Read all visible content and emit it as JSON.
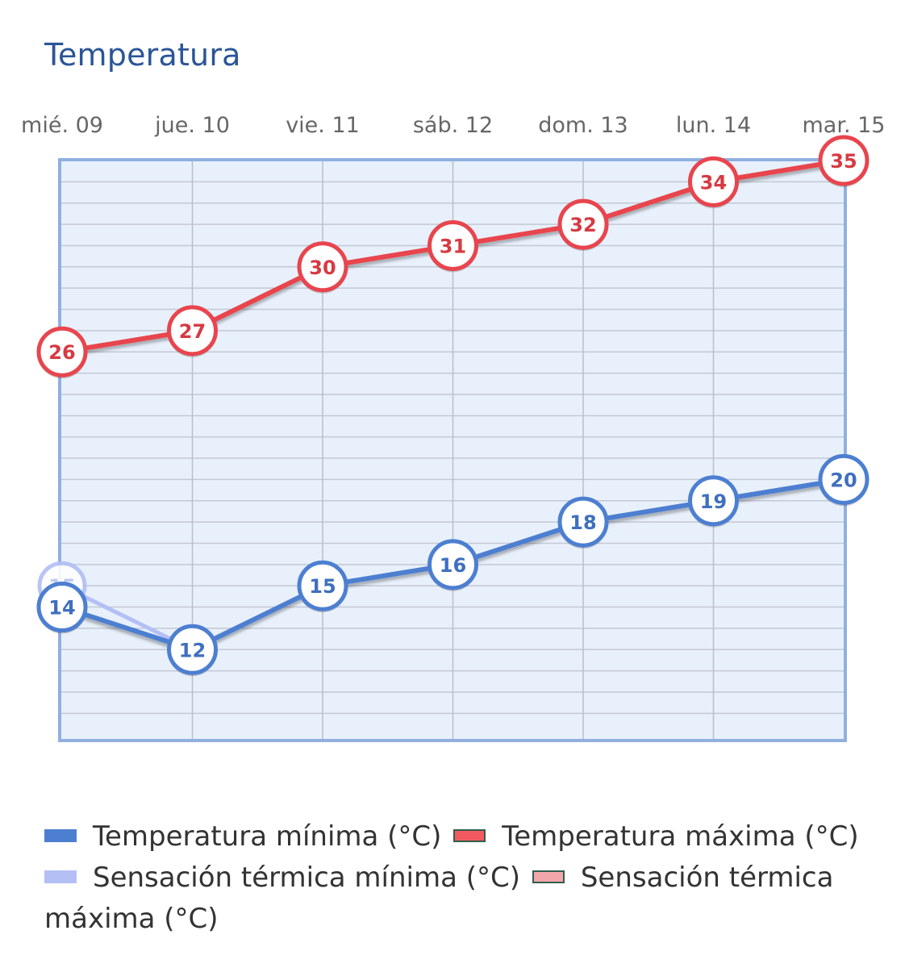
{
  "title": "Temperatura",
  "chart_data": {
    "type": "line",
    "title": "Temperatura",
    "categories": [
      "mié. 09",
      "jue. 10",
      "vie. 11",
      "sáb. 12",
      "dom. 13",
      "lun. 14",
      "mar. 15"
    ],
    "ylim": [
      10,
      35
    ],
    "grid": true,
    "legend_position": "bottom",
    "series": [
      {
        "key": "tmax_feel",
        "name": "Sensación térmica máxima (°C)",
        "color": "#f2a7ab",
        "values": [
          26,
          27,
          30,
          31,
          32,
          34,
          35
        ]
      },
      {
        "key": "tmin_feel",
        "name": "Sensación térmica mínima (°C)",
        "color": "#b3bff5",
        "values": [
          15,
          12,
          15,
          16,
          18,
          19,
          20
        ]
      },
      {
        "key": "tmax",
        "name": "Temperatura máxima (°C)",
        "color": "#e8454e",
        "values": [
          26,
          27,
          30,
          31,
          32,
          34,
          35
        ]
      },
      {
        "key": "tmin",
        "name": "Temperatura mínima (°C)",
        "color": "#4d7fd1",
        "values": [
          14,
          12,
          15,
          16,
          18,
          19,
          20
        ]
      }
    ]
  },
  "legend": [
    {
      "label": "Temperatura mínima (°C)",
      "color": "#4d7fd1",
      "border": "#4d7fd1"
    },
    {
      "label": "Temperatura máxima (°C)",
      "color": "#f2595f",
      "border": "#2f5e4e"
    },
    {
      "label": "Sensación térmica mínima (°C)",
      "color": "#b3bff5",
      "border": "#b3bff5"
    },
    {
      "label": "Sensación térmica máxima (°C)",
      "color": "#f2a7ab",
      "border": "#2f5e4e"
    }
  ]
}
